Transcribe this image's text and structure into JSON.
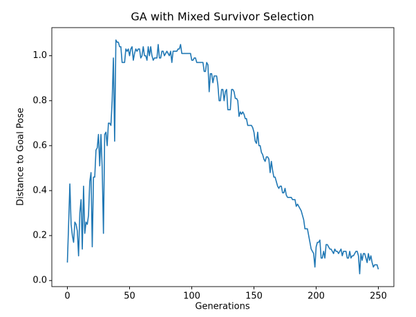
{
  "chart_data": {
    "type": "line",
    "title": "GA with Mixed Survivor Selection",
    "x_label": "Generations",
    "y_label": "Distance to Goal Pose",
    "color": "#1f77b4",
    "grid": false,
    "xlim": [
      -12.5,
      262.5
    ],
    "xticks": [
      0,
      50,
      100,
      150,
      200,
      250
    ],
    "ylim": [
      -0.027,
      1.125
    ],
    "yticks": [
      {
        "value": 0,
        "label": "0.0"
      },
      0.2,
      0.4,
      0.6,
      0.8,
      {
        "value": 1,
        "label": "1.0"
      }
    ],
    "x": [
      0,
      1,
      2,
      3,
      4,
      5,
      6,
      7,
      8,
      9,
      10,
      11,
      12,
      13,
      14,
      15,
      16,
      17,
      18,
      19,
      20,
      21,
      22,
      23,
      24,
      25,
      26,
      27,
      28,
      29,
      30,
      31,
      32,
      33,
      34,
      35,
      36,
      37,
      38,
      39,
      40,
      41,
      42,
      43,
      44,
      45,
      46,
      47,
      48,
      49,
      50,
      51,
      52,
      53,
      54,
      55,
      56,
      57,
      58,
      59,
      60,
      61,
      62,
      63,
      64,
      65,
      66,
      67,
      68,
      69,
      70,
      71,
      72,
      73,
      74,
      75,
      76,
      77,
      78,
      79,
      80,
      81,
      82,
      83,
      84,
      85,
      86,
      87,
      88,
      89,
      90,
      91,
      92,
      93,
      94,
      95,
      96,
      97,
      98,
      99,
      100,
      101,
      102,
      103,
      104,
      105,
      106,
      107,
      108,
      109,
      110,
      111,
      112,
      113,
      114,
      115,
      116,
      117,
      118,
      119,
      120,
      121,
      122,
      123,
      124,
      125,
      126,
      127,
      128,
      129,
      130,
      131,
      132,
      133,
      134,
      135,
      136,
      137,
      138,
      139,
      140,
      141,
      142,
      143,
      144,
      145,
      146,
      147,
      148,
      149,
      150,
      151,
      152,
      153,
      154,
      155,
      156,
      157,
      158,
      159,
      160,
      161,
      162,
      163,
      164,
      165,
      166,
      167,
      168,
      169,
      170,
      171,
      172,
      173,
      174,
      175,
      176,
      177,
      178,
      179,
      180,
      181,
      182,
      183,
      184,
      185,
      186,
      187,
      188,
      189,
      190,
      191,
      192,
      193,
      194,
      195,
      196,
      197,
      198,
      199,
      200,
      201,
      202,
      203,
      204,
      205,
      206,
      207,
      208,
      209,
      210,
      211,
      212,
      213,
      214,
      215,
      216,
      217,
      218,
      219,
      220,
      221,
      222,
      223,
      224,
      225,
      226,
      227,
      228,
      229,
      230,
      231,
      232,
      233,
      234,
      235,
      236,
      237,
      238,
      239,
      240,
      241,
      242,
      243,
      244,
      245,
      246,
      247,
      248,
      249,
      250
    ],
    "values": [
      0.08,
      0.25,
      0.43,
      0.25,
      0.2,
      0.17,
      0.26,
      0.25,
      0.22,
      0.11,
      0.3,
      0.36,
      0.14,
      0.42,
      0.21,
      0.26,
      0.25,
      0.29,
      0.44,
      0.48,
      0.15,
      0.46,
      0.46,
      0.58,
      0.59,
      0.65,
      0.51,
      0.65,
      0.5,
      0.21,
      0.65,
      0.66,
      0.6,
      0.7,
      0.7,
      0.69,
      0.8,
      0.99,
      0.62,
      1.07,
      1.06,
      1.06,
      1.04,
      1.04,
      0.97,
      0.97,
      0.97,
      1.03,
      1.02,
      1.03,
      1.0,
      1.03,
      1.04,
      0.98,
      1.01,
      1.03,
      1.02,
      1.03,
      1.03,
      0.99,
      1.0,
      1.04,
      1.0,
      1.0,
      0.98,
      1.04,
      1.0,
      1.04,
      1.0,
      0.98,
      0.99,
      0.99,
      0.99,
      1.05,
      0.99,
      0.99,
      1.02,
      1.02,
      1.0,
      1.01,
      1.02,
      1.01,
      1.0,
      1.02,
      0.97,
      1.02,
      1.02,
      1.02,
      1.02,
      1.03,
      1.03,
      1.05,
      1.01,
      1.01,
      1.01,
      1.01,
      1.01,
      1.01,
      1.01,
      1.01,
      0.98,
      0.98,
      0.99,
      0.99,
      0.97,
      0.97,
      0.97,
      0.97,
      0.97,
      0.97,
      0.93,
      0.93,
      0.97,
      0.96,
      0.84,
      0.92,
      0.92,
      0.88,
      0.91,
      0.91,
      0.91,
      0.87,
      0.8,
      0.8,
      0.85,
      0.85,
      0.8,
      0.84,
      0.85,
      0.76,
      0.76,
      0.76,
      0.85,
      0.85,
      0.84,
      0.81,
      0.81,
      0.8,
      0.73,
      0.75,
      0.74,
      0.75,
      0.74,
      0.72,
      0.72,
      0.69,
      0.69,
      0.69,
      0.69,
      0.68,
      0.66,
      0.62,
      0.61,
      0.66,
      0.6,
      0.6,
      0.57,
      0.56,
      0.54,
      0.53,
      0.55,
      0.55,
      0.54,
      0.48,
      0.53,
      0.49,
      0.46,
      0.46,
      0.44,
      0.42,
      0.41,
      0.42,
      0.42,
      0.39,
      0.39,
      0.41,
      0.38,
      0.37,
      0.37,
      0.37,
      0.37,
      0.36,
      0.36,
      0.36,
      0.33,
      0.34,
      0.33,
      0.32,
      0.31,
      0.29,
      0.27,
      0.23,
      0.23,
      0.23,
      0.2,
      0.17,
      0.14,
      0.13,
      0.12,
      0.06,
      0.15,
      0.17,
      0.17,
      0.18,
      0.1,
      0.1,
      0.13,
      0.1,
      0.16,
      0.16,
      0.15,
      0.14,
      0.14,
      0.13,
      0.12,
      0.14,
      0.13,
      0.13,
      0.12,
      0.13,
      0.14,
      0.11,
      0.13,
      0.13,
      0.13,
      0.1,
      0.1,
      0.13,
      0.1,
      0.11,
      0.11,
      0.12,
      0.13,
      0.13,
      0.11,
      0.03,
      0.12,
      0.09,
      0.12,
      0.12,
      0.1,
      0.08,
      0.12,
      0.09,
      0.11,
      0.08,
      0.06,
      0.07,
      0.07,
      0.07,
      0.05
    ]
  }
}
